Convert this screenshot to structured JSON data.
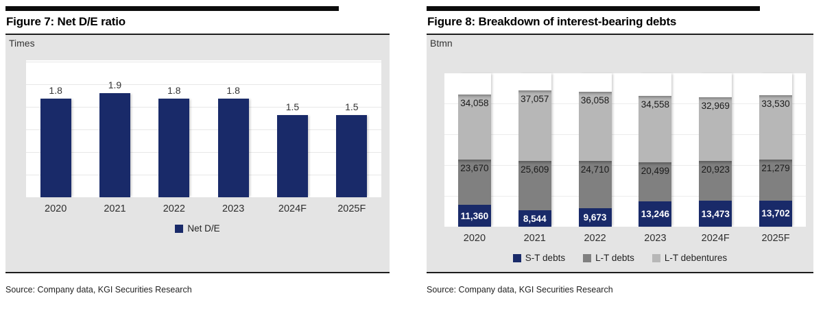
{
  "figures": {
    "fig7": {
      "title": "Figure 7: Net D/E ratio",
      "unit_label": "Times",
      "source": "Source: Company data, KGI Securities Research"
    },
    "fig8": {
      "title": "Figure 8: Breakdown of interest-bearing debts",
      "unit_label": "Btmn",
      "source": "Source: Company data, KGI Securities Research"
    }
  },
  "chart_data": [
    {
      "type": "bar",
      "title": "Figure 7: Net D/E ratio",
      "ylabel": "Times",
      "xlabel": "",
      "categories": [
        "2020",
        "2021",
        "2022",
        "2023",
        "2024F",
        "2025F"
      ],
      "values": [
        1.8,
        1.9,
        1.8,
        1.8,
        1.5,
        1.5
      ],
      "value_format": "fixed1",
      "ylim": [
        0,
        2.5
      ],
      "grid": true,
      "legend_position": "bottom",
      "bar_color": "#192a69",
      "legend_items": [
        {
          "label": "Net D/E",
          "color": "#192a69"
        }
      ]
    },
    {
      "type": "bar",
      "stacked": true,
      "title": "Figure 8: Breakdown of interest-bearing debts",
      "ylabel": "Btmn",
      "xlabel": "",
      "categories": [
        "2020",
        "2021",
        "2022",
        "2023",
        "2024F",
        "2025F"
      ],
      "series": [
        {
          "name": "S-T debts",
          "color": "#192a69",
          "values": [
            11360,
            8544,
            9673,
            13246,
            13473,
            13702
          ]
        },
        {
          "name": "L-T debts",
          "color": "#808080",
          "values": [
            23670,
            25609,
            24710,
            20499,
            20923,
            21279
          ]
        },
        {
          "name": "L-T debentures",
          "color": "#b7b7b7",
          "values": [
            34058,
            37057,
            36058,
            34558,
            32969,
            33530
          ]
        }
      ],
      "value_format": "comma",
      "ylim": [
        0,
        80000
      ],
      "grid": true,
      "legend_position": "bottom"
    }
  ],
  "colors": {
    "navy": "#192a69",
    "dark_gray": "#808080",
    "light_gray": "#b7b7b7",
    "panel_background": "#e4e4e4",
    "gridline": "#e7e7e7"
  }
}
